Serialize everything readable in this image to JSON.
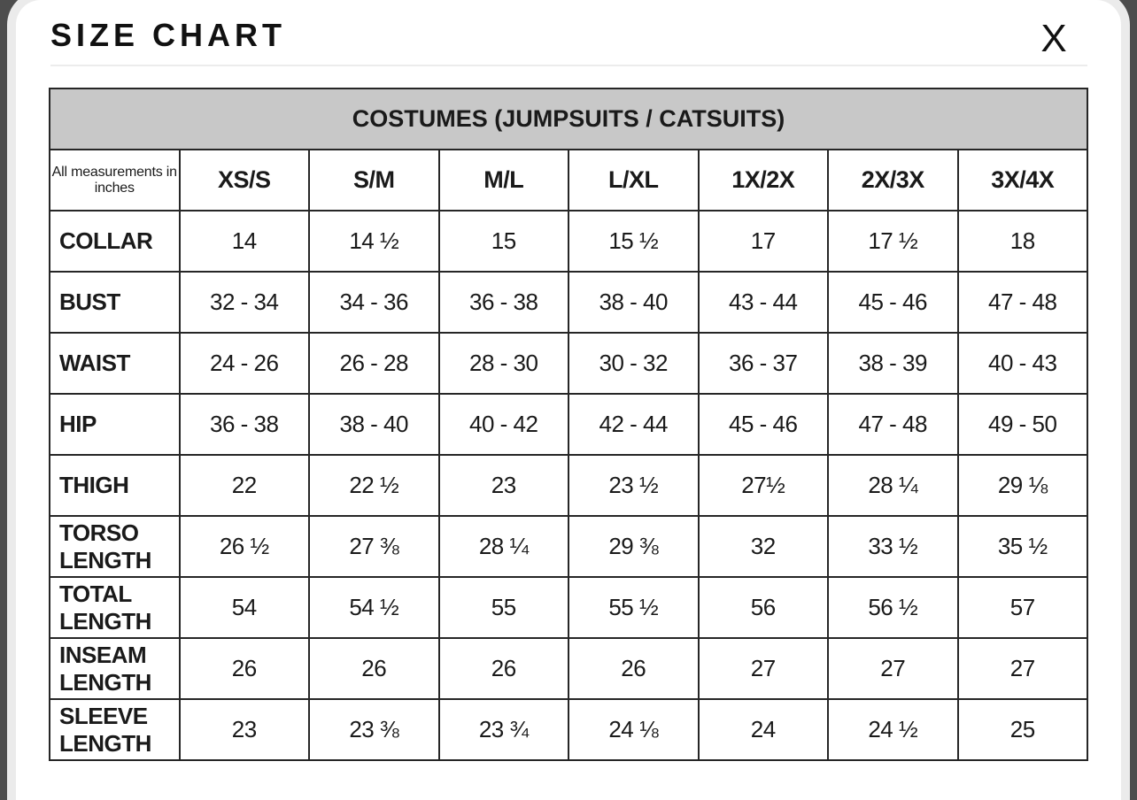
{
  "modal": {
    "title": "SIZE CHART",
    "close_label": "X"
  },
  "table": {
    "title": "COSTUMES (JUMPSUITS / CATSUITS)",
    "note": "All measurements in inches",
    "columns": [
      "XS/S",
      "S/M",
      "M/L",
      "L/XL",
      "1X/2X",
      "2X/3X",
      "3X/4X"
    ],
    "rows": [
      {
        "label": "COLLAR",
        "values": [
          "14",
          "14 ½",
          "15",
          "15 ½",
          "17",
          "17 ½",
          "18"
        ]
      },
      {
        "label": "BUST",
        "values": [
          "32 - 34",
          "34 - 36",
          "36 - 38",
          "38 - 40",
          "43 - 44",
          "45 - 46",
          "47 - 48"
        ]
      },
      {
        "label": "WAIST",
        "values": [
          "24 - 26",
          "26 - 28",
          "28 - 30",
          "30 - 32",
          "36 - 37",
          "38 - 39",
          "40 - 43"
        ]
      },
      {
        "label": "HIP",
        "values": [
          "36 - 38",
          "38 - 40",
          "40 - 42",
          "42 - 44",
          "45 - 46",
          "47 - 48",
          "49 - 50"
        ]
      },
      {
        "label": "THIGH",
        "values": [
          "22",
          "22 ½",
          "23",
          "23 ½",
          "27½",
          "28 ¼",
          "29 ⅛"
        ]
      },
      {
        "label": "TORSO LENGTH",
        "values": [
          "26 ½",
          "27 ⅜",
          "28 ¼",
          "29 ⅜",
          "32",
          "33 ½",
          "35 ½"
        ]
      },
      {
        "label": "TOTAL LENGTH",
        "values": [
          "54",
          "54 ½",
          "55",
          "55 ½",
          "56",
          "56 ½",
          "57"
        ]
      },
      {
        "label": "INSEAM LENGTH",
        "values": [
          "26",
          "26",
          "26",
          "26",
          "27",
          "27",
          "27"
        ]
      },
      {
        "label": "SLEEVE LENGTH",
        "values": [
          "23",
          "23 ⅜",
          "23 ¾",
          "24 ⅛",
          "24",
          "24 ½",
          "25"
        ]
      }
    ]
  },
  "colors": {
    "backdrop": "#4d4d4d",
    "modal_background": "#ffffff",
    "modal_outline": "#ebebeb",
    "table_band_background": "#c8c8c8",
    "table_border": "#262626",
    "text": "#1a1a1a"
  }
}
